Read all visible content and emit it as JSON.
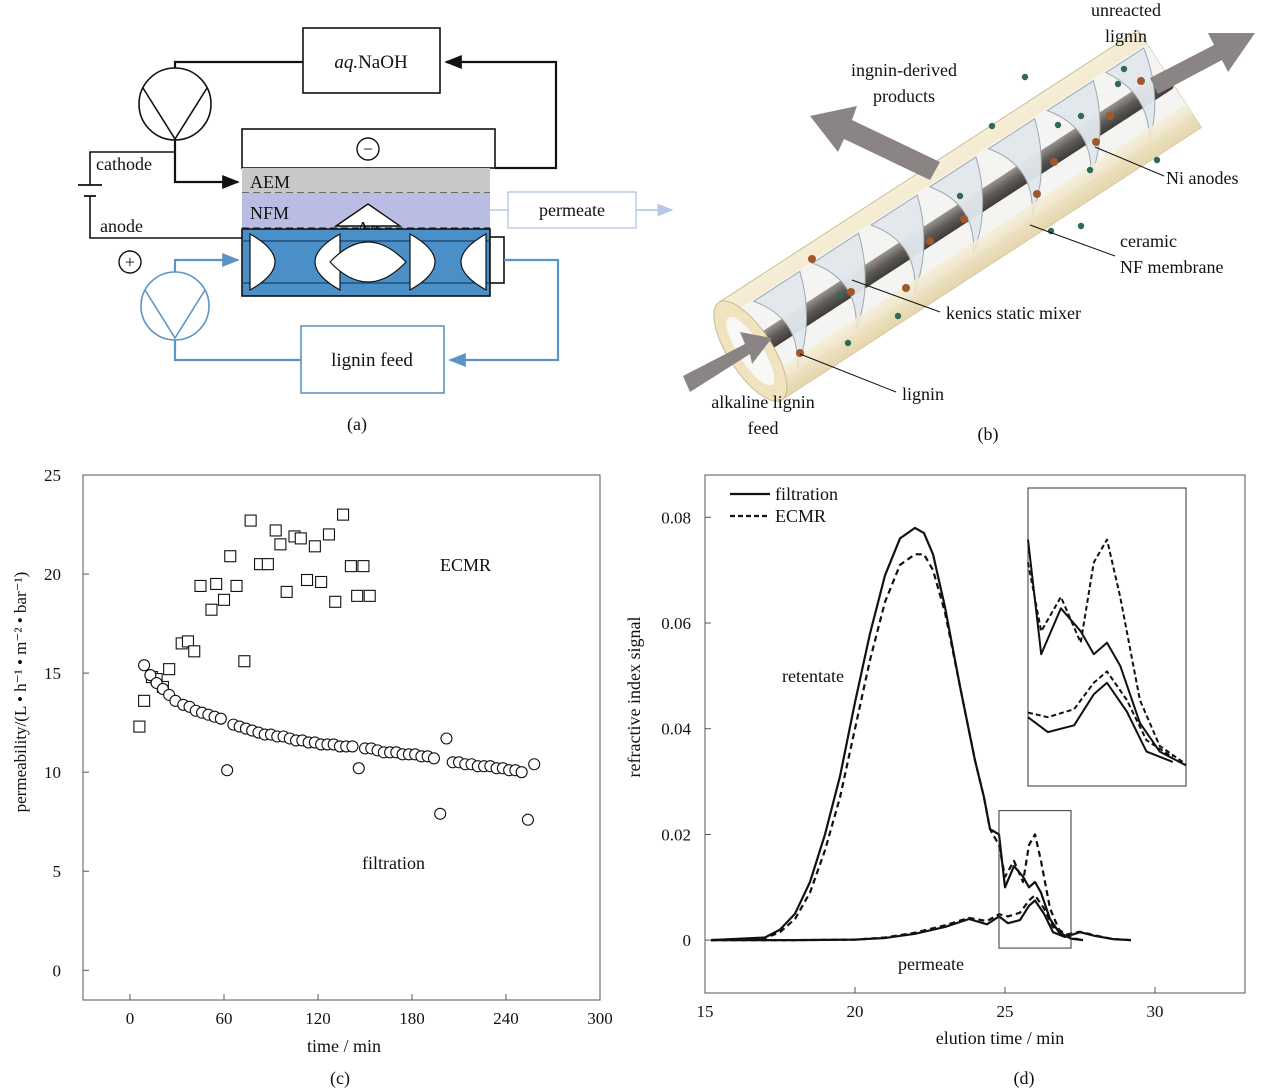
{
  "panel_a": {
    "caption": "(a)",
    "naoh_label_italic": "aq.",
    "naoh_label_rest": "NaOH",
    "cathode_label": "cathode",
    "anode_label": "anode",
    "minus_symbol": "−",
    "plus_symbol": "+",
    "aem_label": "AEM",
    "nfm_label": "NFM",
    "dp_label_delta": "Δ",
    "dp_label_p": "p",
    "permeate_label": "permeate",
    "lignin_feed_label": "lignin  feed",
    "colors": {
      "aem": "#c8c8c8",
      "nfm": "#b9bde3",
      "channel": "#4a8fc7",
      "feed_loop": "#5b95c7",
      "permeate_arrow": "#b8c8e4"
    }
  },
  "panel_b": {
    "caption": "(b)",
    "labels": {
      "unreacted": "unreacted\nlignin",
      "products": "ingnin-derived\nproducts",
      "ni_anodes": "Ni anodes",
      "ceramic": "ceramic\nNF membrane",
      "kenics": "kenics  static  mixer",
      "lignin": "lignin",
      "feed": "alkaline lignin\nfeed"
    },
    "colors": {
      "shell": "#eee3c4",
      "rod": "#6e6a66",
      "mixer": "#dfe6ea",
      "arrow": "#8a8584",
      "particle_brown": "#a0582a",
      "particle_green": "#2f6a55"
    }
  },
  "panel_c": {
    "caption": "(c)",
    "ylabel": "permeability/(L • h⁻¹ • m⁻² • bar⁻¹)",
    "xlabel": "time / min",
    "ecmr_label": "ECMR",
    "filtration_label": "filtration",
    "chart_data": {
      "type": "scatter",
      "x_ticks": [
        0,
        60,
        120,
        180,
        240,
        300
      ],
      "y_ticks": [
        0,
        5,
        10,
        15,
        20,
        25
      ],
      "xlim": [
        -30,
        300
      ],
      "ylim": [
        -1.5,
        25
      ],
      "series": [
        {
          "name": "ECMR",
          "marker": "square",
          "x": [
            6,
            9,
            14,
            17,
            21,
            25,
            33,
            37,
            41,
            45,
            52,
            55,
            60,
            64,
            68,
            73,
            77,
            83,
            88,
            93,
            96,
            100,
            105,
            109,
            113,
            118,
            122,
            127,
            131,
            136,
            141,
            145,
            149,
            153
          ],
          "y": [
            12.3,
            13.6,
            14.8,
            14.7,
            14.3,
            15.2,
            16.5,
            16.6,
            16.1,
            19.4,
            18.2,
            19.5,
            18.7,
            20.9,
            19.4,
            15.6,
            22.7,
            20.5,
            20.5,
            22.2,
            21.5,
            19.1,
            21.9,
            21.8,
            19.7,
            21.4,
            19.6,
            22.0,
            18.6,
            23.0,
            20.4,
            18.9,
            20.4,
            18.9
          ]
        },
        {
          "name": "filtration",
          "marker": "circle",
          "x": [
            9,
            13,
            17,
            21,
            25,
            29,
            34,
            38,
            42,
            46,
            50,
            54,
            58,
            62,
            66,
            70,
            74,
            78,
            82,
            86,
            90,
            94,
            98,
            102,
            106,
            110,
            114,
            118,
            122,
            126,
            130,
            134,
            138,
            142,
            146,
            150,
            154,
            158,
            162,
            166,
            170,
            174,
            178,
            182,
            186,
            190,
            194,
            198,
            202,
            206,
            210,
            214,
            218,
            222,
            226,
            230,
            234,
            238,
            242,
            246,
            250,
            254,
            258
          ],
          "y": [
            15.4,
            14.9,
            14.5,
            14.2,
            13.9,
            13.6,
            13.4,
            13.3,
            13.1,
            13.0,
            12.9,
            12.8,
            12.7,
            10.1,
            12.4,
            12.3,
            12.2,
            12.1,
            12.0,
            11.9,
            11.9,
            11.8,
            11.8,
            11.7,
            11.6,
            11.6,
            11.5,
            11.5,
            11.4,
            11.4,
            11.4,
            11.3,
            11.3,
            11.3,
            10.2,
            11.2,
            11.2,
            11.1,
            11.0,
            11.0,
            11.0,
            10.9,
            10.9,
            10.9,
            10.8,
            10.8,
            10.7,
            7.9,
            11.7,
            10.5,
            10.5,
            10.4,
            10.4,
            10.3,
            10.3,
            10.3,
            10.2,
            10.2,
            10.1,
            10.1,
            10.0,
            7.6,
            10.4
          ]
        }
      ]
    }
  },
  "panel_d": {
    "caption": "(d)",
    "ylabel": "refractive  index  signal",
    "xlabel": "elution  time / min",
    "legend": [
      {
        "name": "filtration",
        "style": "solid"
      },
      {
        "name": "ECMR",
        "style": "dashed"
      }
    ],
    "retentate_label": "retentate",
    "permeate_label": "permeate",
    "chart_data": {
      "type": "line",
      "x_ticks": [
        15,
        20,
        25,
        30
      ],
      "y_ticks": [
        0,
        0.02,
        0.04,
        0.06,
        0.08
      ],
      "y_tick_labels": [
        "0",
        "0.02",
        "0.04",
        "0.06",
        "0.08"
      ],
      "xlim": [
        15,
        33
      ],
      "ylim": [
        -0.01,
        0.088
      ],
      "series": [
        {
          "name": "filtration retentate",
          "style": "solid",
          "x": [
            15.2,
            17,
            17.5,
            18,
            18.5,
            19,
            19.5,
            20,
            20.5,
            21,
            21.5,
            22,
            22.3,
            22.6,
            23,
            23.5,
            24,
            24.3,
            24.5,
            24.8,
            25,
            25.3,
            25.6,
            25.8,
            26,
            26.2,
            26.5,
            26.8,
            27.2,
            27.6
          ],
          "y": [
            0,
            0.0005,
            0.002,
            0.005,
            0.011,
            0.02,
            0.031,
            0.045,
            0.058,
            0.069,
            0.076,
            0.078,
            0.077,
            0.073,
            0.063,
            0.048,
            0.034,
            0.027,
            0.021,
            0.02,
            0.01,
            0.014,
            0.012,
            0.01,
            0.011,
            0.009,
            0.004,
            0.0015,
            0.0003,
            0
          ]
        },
        {
          "name": "ECMR retentate",
          "style": "dashed",
          "x": [
            15.2,
            17,
            17.5,
            18,
            18.5,
            19,
            19.5,
            20,
            20.5,
            21,
            21.5,
            22,
            22.3,
            22.6,
            23,
            23.5,
            24,
            24.3,
            24.5,
            24.8,
            25,
            25.3,
            25.6,
            25.8,
            26,
            26.2,
            26.5,
            26.8,
            27.2,
            27.6
          ],
          "y": [
            0,
            0.0004,
            0.0015,
            0.004,
            0.009,
            0.017,
            0.027,
            0.04,
            0.053,
            0.064,
            0.071,
            0.073,
            0.073,
            0.07,
            0.062,
            0.048,
            0.034,
            0.027,
            0.021,
            0.018,
            0.012,
            0.015,
            0.011,
            0.018,
            0.02,
            0.015,
            0.006,
            0.002,
            0.0004,
            0
          ]
        },
        {
          "name": "filtration permeate",
          "style": "solid",
          "x": [
            15.2,
            18,
            20,
            21,
            22,
            23,
            23.8,
            24.4,
            24.8,
            25.1,
            25.5,
            25.8,
            26,
            26.3,
            26.6,
            27,
            27.5,
            28,
            28.6,
            29.2
          ],
          "y": [
            0,
            0,
            0.0001,
            0.0004,
            0.0012,
            0.0025,
            0.004,
            0.003,
            0.0045,
            0.0032,
            0.0038,
            0.0065,
            0.0075,
            0.005,
            0.0015,
            0.0006,
            0.0015,
            0.0008,
            0.0002,
            0
          ]
        },
        {
          "name": "ECMR permeate",
          "style": "dashed",
          "x": [
            15.2,
            18,
            20,
            21,
            22,
            23,
            23.8,
            24.4,
            24.8,
            25.1,
            25.5,
            25.8,
            26,
            26.3,
            26.6,
            27,
            27.5,
            28,
            28.6,
            29.2
          ],
          "y": [
            0,
            0,
            0.0001,
            0.0005,
            0.0014,
            0.0028,
            0.0042,
            0.0036,
            0.0049,
            0.0045,
            0.0052,
            0.0075,
            0.0085,
            0.006,
            0.0025,
            0.001,
            0.0016,
            0.0009,
            0.0002,
            0
          ]
        }
      ],
      "zoom_box": {
        "x": [
          24.8,
          27.2
        ],
        "y": [
          -0.0015,
          0.0245
        ]
      }
    }
  }
}
